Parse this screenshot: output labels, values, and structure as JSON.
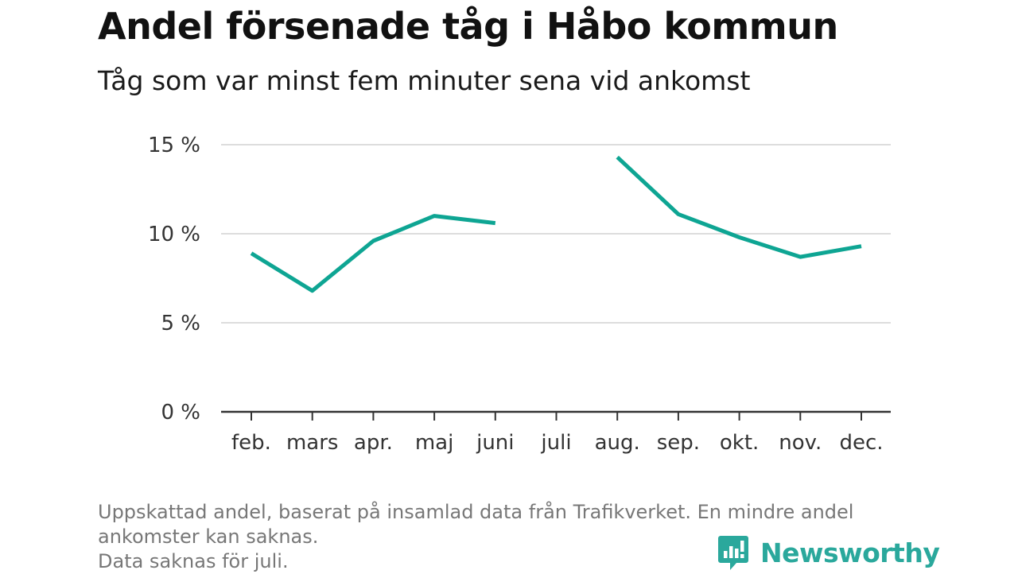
{
  "header": {
    "title": "Andel försenade tåg i Håbo kommun",
    "subtitle": "Tåg som var minst fem minuter sena vid ankomst"
  },
  "chart_data": {
    "type": "line",
    "categories": [
      "feb.",
      "mars",
      "apr.",
      "maj",
      "juni",
      "juli",
      "aug.",
      "sep.",
      "okt.",
      "nov.",
      "dec."
    ],
    "series": [
      {
        "values": [
          8.9,
          6.8,
          9.6,
          11.0,
          10.6,
          null,
          14.3,
          11.1,
          9.8,
          8.7,
          9.3
        ]
      }
    ],
    "ylim": [
      0,
      15
    ],
    "yticks": [
      0,
      5,
      10,
      15
    ],
    "ytick_labels": [
      "0 %",
      "5 %",
      "10 %",
      "15 %"
    ],
    "grid": true,
    "line_color": "#0ea593",
    "grid_color": "#dddddd",
    "axis_color": "#333333"
  },
  "footnote": {
    "lines": [
      "Uppskattad andel, baserat på insamlad data från Trafikverket. En mindre andel",
      "ankomster kan saknas.",
      "Data saknas för juli."
    ]
  },
  "logo": {
    "text": "Newsworthy",
    "icon": "newsworthy-logo-icon",
    "color": "#2aa89c"
  }
}
